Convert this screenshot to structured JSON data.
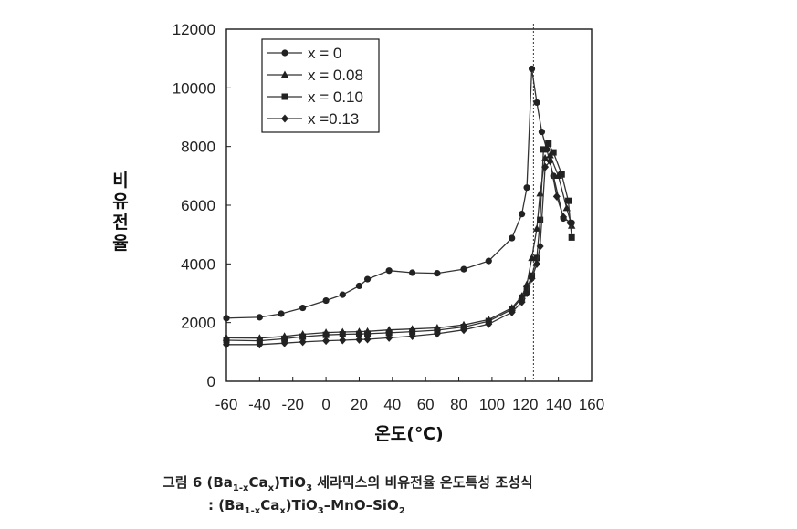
{
  "chart_data": {
    "type": "line",
    "xlabel": "온도(℃)",
    "ylabel": "비유전율",
    "xlim": [
      -60,
      160
    ],
    "ylim": [
      0,
      12000
    ],
    "xticks": [
      "-60",
      "-40",
      "-20",
      "0",
      "20",
      "40",
      "60",
      "80",
      "100",
      "120",
      "140",
      "160"
    ],
    "yticks": [
      "0",
      "2000",
      "4000",
      "6000",
      "8000",
      "10000",
      "12000"
    ],
    "grid": false,
    "legend_position": "top-left",
    "vline_x": 125,
    "series": [
      {
        "name": "x = 0",
        "marker": "circle",
        "x": [
          -60,
          -40,
          -27,
          -14,
          0,
          10,
          20,
          25,
          38,
          52,
          67,
          83,
          98,
          112,
          118,
          121,
          124,
          127,
          130,
          133,
          137,
          143,
          148
        ],
        "y": [
          2150,
          2180,
          2300,
          2500,
          2750,
          2950,
          3250,
          3480,
          3770,
          3700,
          3680,
          3820,
          4100,
          4880,
          5700,
          6600,
          10650,
          9500,
          8500,
          7900,
          7000,
          5550,
          5400
        ]
      },
      {
        "name": "x = 0.08",
        "marker": "triangle",
        "x": [
          -60,
          -40,
          -25,
          -14,
          0,
          10,
          20,
          25,
          38,
          52,
          67,
          83,
          98,
          112,
          118,
          121,
          124,
          127,
          129,
          132,
          135,
          140,
          145,
          148
        ],
        "y": [
          1480,
          1470,
          1530,
          1600,
          1660,
          1680,
          1690,
          1700,
          1750,
          1780,
          1820,
          1920,
          2100,
          2500,
          2900,
          3300,
          4200,
          5200,
          6400,
          7600,
          7700,
          7000,
          5900,
          5300
        ]
      },
      {
        "name": "x = 0.10",
        "marker": "square",
        "x": [
          -60,
          -40,
          -25,
          -14,
          0,
          10,
          20,
          25,
          38,
          52,
          67,
          83,
          98,
          112,
          118,
          121,
          124,
          127,
          129,
          131,
          134,
          137,
          142,
          146,
          148
        ],
        "y": [
          1400,
          1380,
          1450,
          1520,
          1580,
          1600,
          1610,
          1620,
          1650,
          1690,
          1740,
          1850,
          2050,
          2450,
          2850,
          3150,
          3600,
          4200,
          5500,
          7900,
          8100,
          7800,
          7050,
          6150,
          4900
        ]
      },
      {
        "name": "x =0.13",
        "marker": "diamond",
        "x": [
          -60,
          -40,
          -25,
          -14,
          0,
          10,
          20,
          25,
          38,
          52,
          67,
          83,
          98,
          112,
          118,
          121,
          124,
          127,
          129,
          132,
          135,
          139,
          143,
          147
        ],
        "y": [
          1250,
          1250,
          1300,
          1340,
          1380,
          1400,
          1420,
          1430,
          1480,
          1540,
          1620,
          1750,
          1950,
          2350,
          2700,
          3000,
          3500,
          4000,
          4600,
          7300,
          7500,
          6300,
          5600,
          5400
        ]
      }
    ]
  },
  "caption": {
    "line1_prefix": "그림 6",
    "line1_formula": "(Ba1-xCax)TiO3",
    "line1_text": "세라믹스의 비유전율 온도특성 조성식",
    "line2": ": (Ba1-xCax)TiO3–MnO–SiO2"
  }
}
